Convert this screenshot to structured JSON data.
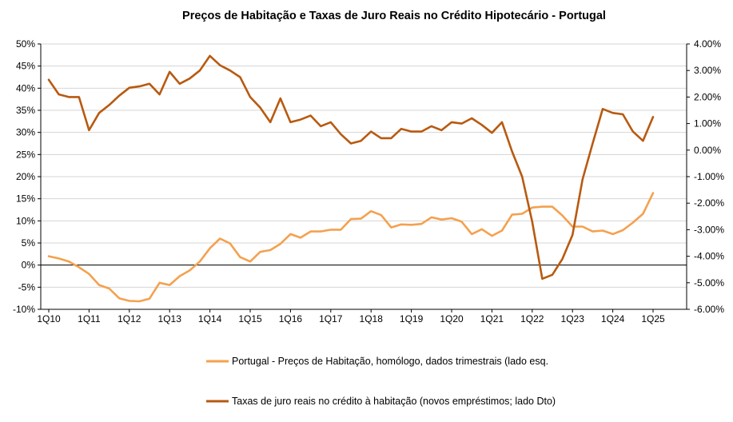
{
  "chart_data": {
    "type": "line",
    "title": "Preços de Habitação e Taxas de Juro Reais  no Crédito Hipotecário  -  Portugal",
    "x_tick_labels": [
      "1Q10",
      "1Q11",
      "1Q12",
      "1Q13",
      "1Q14",
      "1Q15",
      "1Q16",
      "1Q17",
      "1Q18",
      "1Q19",
      "1Q20",
      "1Q21",
      "1Q22",
      "1Q23",
      "1Q24",
      "1Q25"
    ],
    "y_left": {
      "min": -10,
      "max": 50,
      "step": 5,
      "tick_labels": [
        "-10%",
        "-5%",
        "0%",
        "5%",
        "10%",
        "15%",
        "20%",
        "25%",
        "30%",
        "35%",
        "40%",
        "45%",
        "50%"
      ]
    },
    "y_right": {
      "min": -6,
      "max": 4,
      "step": 1,
      "tick_labels": [
        "-6.00%",
        "-5.00%",
        "-4.00%",
        "-3.00%",
        "-2.00%",
        "-1.00%",
        "0.00%",
        "1.00%",
        "2.00%",
        "3.00%",
        "4.00%"
      ]
    },
    "grid": "horizontal",
    "legend_position": "bottom",
    "series": [
      {
        "name": "Portugal - Preços de Habitação, homólogo, dados trimestrais (lado esq.",
        "axis": "left",
        "color": "#F4A14F",
        "values": [
          2.0,
          1.5,
          0.8,
          -0.5,
          -2.0,
          -4.5,
          -5.3,
          -7.5,
          -8.1,
          -8.2,
          -7.6,
          -4.0,
          -4.5,
          -2.5,
          -1.2,
          0.8,
          3.8,
          6.0,
          4.9,
          1.8,
          0.8,
          3.0,
          3.4,
          4.8,
          7.0,
          6.2,
          7.6,
          7.6,
          8.0,
          8.0,
          10.4,
          10.5,
          12.2,
          11.3,
          8.5,
          9.2,
          9.1,
          9.3,
          10.8,
          10.3,
          10.6,
          9.8,
          7.0,
          8.1,
          6.6,
          7.8,
          11.4,
          11.6,
          13.0,
          13.2,
          13.2,
          11.2,
          8.7,
          8.7,
          7.6,
          7.8,
          7.0,
          7.9,
          9.6,
          11.6,
          16.3
        ]
      },
      {
        "name": "Taxas de juro reais no crédito à habitação (novos empréstimos; lado Dto)",
        "axis": "right",
        "color": "#B85A10",
        "values": [
          2.65,
          2.1,
          2.0,
          2.0,
          0.75,
          1.4,
          1.7,
          2.05,
          2.35,
          2.4,
          2.5,
          2.1,
          2.95,
          2.5,
          2.7,
          3.0,
          3.55,
          3.2,
          3.0,
          2.75,
          2.0,
          1.6,
          1.05,
          1.95,
          1.05,
          1.15,
          1.3,
          0.9,
          1.05,
          0.6,
          0.25,
          0.35,
          0.7,
          0.45,
          0.45,
          0.8,
          0.7,
          0.7,
          0.9,
          0.75,
          1.05,
          1.0,
          1.2,
          0.95,
          0.65,
          1.05,
          -0.05,
          -1.0,
          -2.7,
          -4.85,
          -4.7,
          -4.1,
          -3.2,
          -1.1,
          0.25,
          1.55,
          1.4,
          1.35,
          0.7,
          0.35,
          1.25
        ]
      }
    ]
  }
}
